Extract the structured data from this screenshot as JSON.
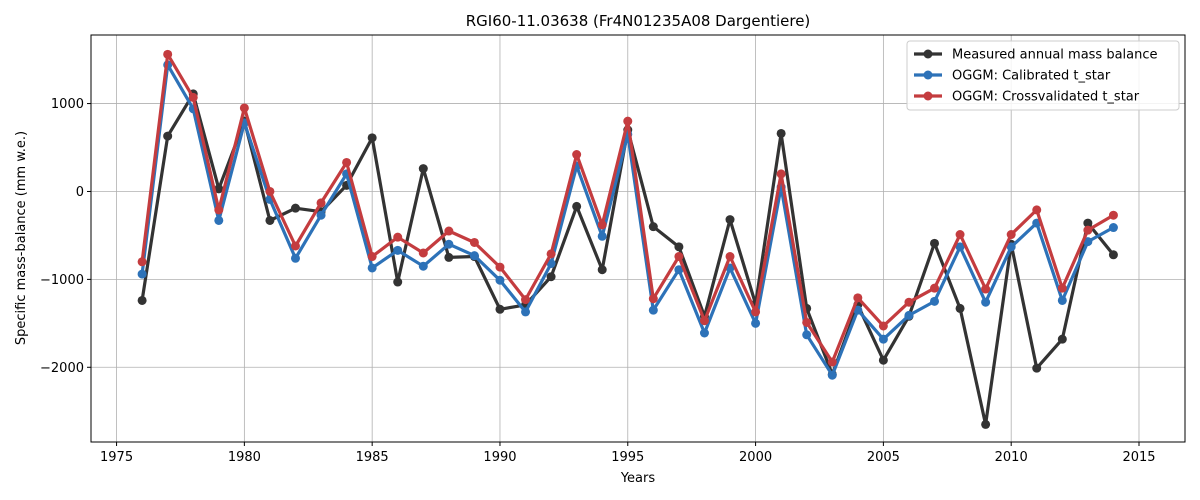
{
  "chart_data": {
    "type": "line",
    "title": "RGI60-11.03638 (Fr4N01235A08 Dargentiere)",
    "xlabel": "Years",
    "ylabel": "Specific mass-balance (mm w.e.)",
    "xlim": [
      1974,
      2016.8
    ],
    "ylim": [
      -2850,
      1780
    ],
    "xticks": [
      1975,
      1980,
      1985,
      1990,
      1995,
      2000,
      2005,
      2010,
      2015
    ],
    "yticks": [
      -2000,
      -1000,
      0,
      1000
    ],
    "ytick_labels": [
      "−2000",
      "−1000",
      "0",
      "1000"
    ],
    "grid": true,
    "legend_position": "top-right",
    "x": [
      1976,
      1977,
      1978,
      1979,
      1980,
      1981,
      1982,
      1983,
      1984,
      1985,
      1986,
      1987,
      1988,
      1989,
      1990,
      1991,
      1992,
      1993,
      1994,
      1995,
      1996,
      1997,
      1998,
      1999,
      2000,
      2001,
      2002,
      2003,
      2004,
      2005,
      2006,
      2007,
      2008,
      2009,
      2010,
      2011,
      2012,
      2013,
      2014
    ],
    "series": [
      {
        "name": "Measured annual mass balance",
        "color": "#333333",
        "values": [
          -1240,
          630,
          1110,
          30,
          800,
          -330,
          -190,
          -230,
          70,
          610,
          -1030,
          260,
          -750,
          -740,
          -1340,
          -1290,
          -970,
          -170,
          -890,
          700,
          -400,
          -630,
          -1420,
          -320,
          -1280,
          660,
          -1330,
          -2080,
          -1290,
          -1920,
          -1420,
          -590,
          -1330,
          -2650,
          -600,
          -2010,
          -1680,
          -360,
          -720
        ]
      },
      {
        "name": "OGGM: Calibrated t_star",
        "color": "#2d72b8",
        "values": [
          -940,
          1440,
          940,
          -330,
          780,
          -90,
          -760,
          -270,
          200,
          -870,
          -670,
          -850,
          -600,
          -730,
          -1010,
          -1370,
          -820,
          290,
          -510,
          650,
          -1350,
          -890,
          -1610,
          -870,
          -1500,
          50,
          -1630,
          -2090,
          -1350,
          -1680,
          -1410,
          -1250,
          -630,
          -1260,
          -630,
          -360,
          -1240,
          -570,
          -410
        ]
      },
      {
        "name": "OGGM: Crossvalidated t_star",
        "color": "#c43c3f",
        "values": [
          -800,
          1560,
          1070,
          -210,
          950,
          0,
          -620,
          -130,
          330,
          -740,
          -520,
          -700,
          -450,
          -580,
          -860,
          -1230,
          -710,
          420,
          -380,
          800,
          -1220,
          -740,
          -1470,
          -740,
          -1370,
          200,
          -1490,
          -1940,
          -1210,
          -1530,
          -1260,
          -1100,
          -490,
          -1110,
          -490,
          -210,
          -1100,
          -440,
          -270
        ]
      }
    ]
  }
}
